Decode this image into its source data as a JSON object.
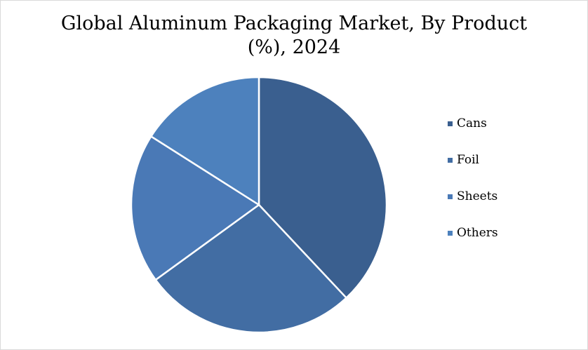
{
  "chart_data": {
    "type": "pie",
    "title_line1": "Global Aluminum Packaging Market, By Product",
    "title_line2": "(%), 2024",
    "categories": [
      "Cans",
      "Foil",
      "Sheets",
      "Others"
    ],
    "values": [
      38,
      27,
      19,
      16
    ],
    "colors": [
      "#3a5f8f",
      "#426da3",
      "#4a79b6",
      "#4d81bd"
    ],
    "legend_position": "right"
  }
}
